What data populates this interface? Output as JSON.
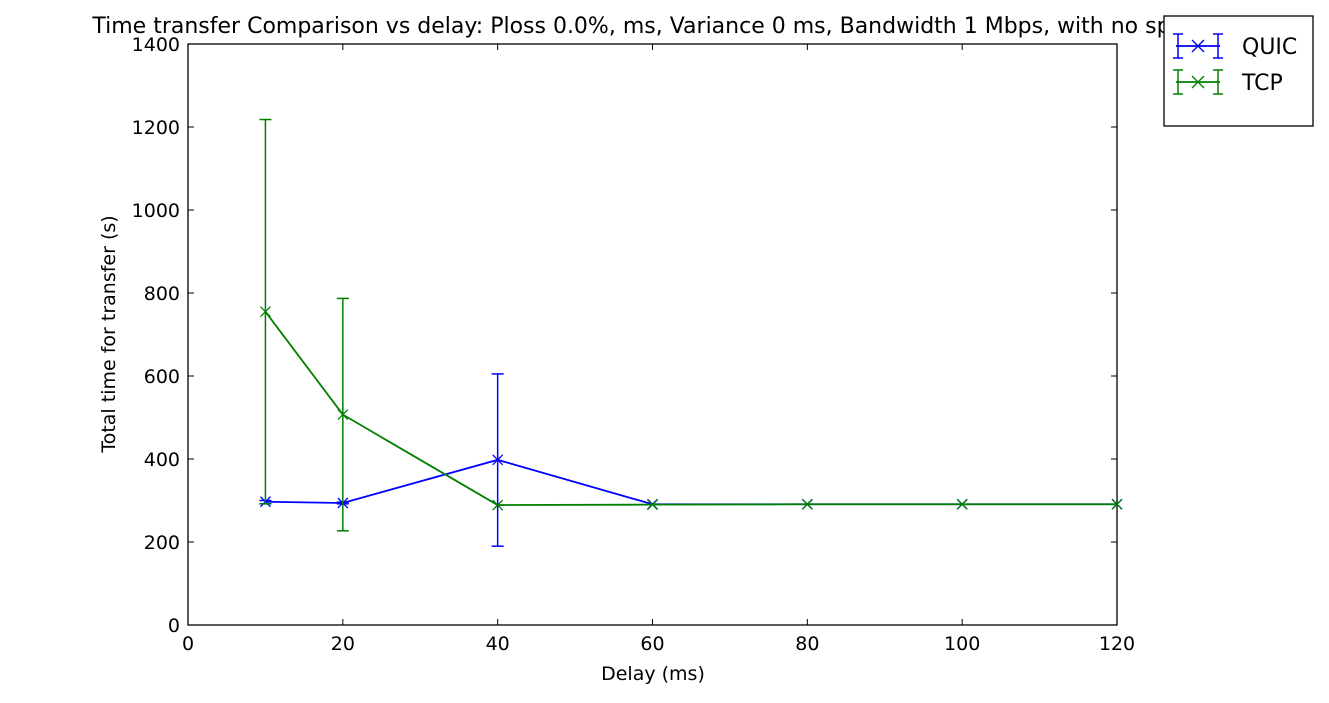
{
  "chart_data": {
    "type": "line",
    "title": "Time transfer Comparison vs delay: Ploss 0.0%, ms, Variance 0 ms, Bandwidth 1 Mbps, with no spikes",
    "xlabel": "Delay (ms)",
    "ylabel": "Total time for transfer (s)",
    "xlim": [
      0,
      120
    ],
    "ylim": [
      0,
      1400
    ],
    "xticks": [
      0,
      20,
      40,
      60,
      80,
      100,
      120
    ],
    "yticks": [
      0,
      200,
      400,
      600,
      800,
      1000,
      1200,
      1400
    ],
    "grid": false,
    "legend_position": "outside-top-right",
    "error_bars": true,
    "series": [
      {
        "name": "QUIC",
        "color": "#0000ff",
        "marker": "x",
        "x": [
          10,
          20,
          40,
          60,
          80,
          100,
          120
        ],
        "y": [
          297,
          294,
          398,
          291,
          291,
          291,
          291
        ],
        "err_low": [
          292,
          292,
          190,
          291,
          291,
          291,
          291
        ],
        "err_high": [
          300,
          296,
          605,
          291,
          291,
          291,
          291
        ]
      },
      {
        "name": "TCP",
        "color": "#008000",
        "marker": "x",
        "x": [
          10,
          20,
          40,
          60,
          80,
          100,
          120
        ],
        "y": [
          755,
          507,
          289,
          290,
          291,
          291,
          291
        ],
        "err_low": [
          292,
          227,
          289,
          290,
          291,
          291,
          291
        ],
        "err_high": [
          1218,
          787,
          289,
          290,
          291,
          291,
          291
        ]
      }
    ]
  }
}
